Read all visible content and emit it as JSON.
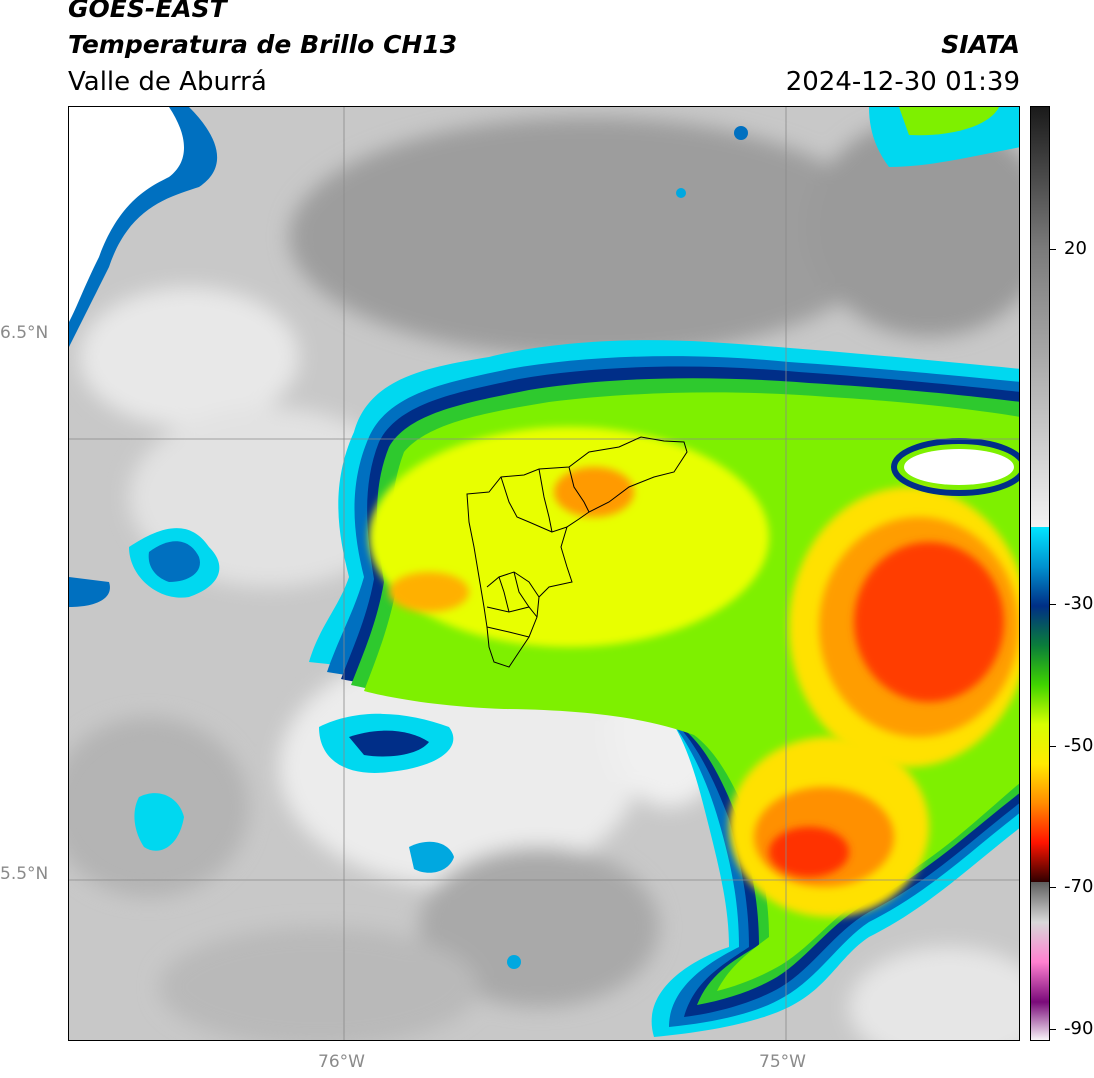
{
  "header": {
    "satellite": "GOES-EAST",
    "product": "Temperatura de Brillo CH13",
    "region": "Valle de Aburrá",
    "organization": "SIATA",
    "datetime": "2024-12-30 01:39"
  },
  "map": {
    "lat_labels": [
      "6.5°N",
      "5.5°N"
    ],
    "lon_labels": [
      "76°W",
      "75°W"
    ]
  },
  "colorbar": {
    "labels": [
      "20",
      "-30",
      "-50",
      "-70",
      "-90"
    ],
    "colors": {
      "warm": [
        "#1a1a1a",
        "#7a7a7a",
        "#b5b5b5",
        "#f2f2f2"
      ],
      "cloud": [
        "#00e5ff",
        "#0092d0",
        "#002f86",
        "#0a7d3a",
        "#3fd400",
        "#d6ff00",
        "#ffea00",
        "#ff8c00",
        "#ff1400",
        "#300000"
      ],
      "cold": [
        "#5e5e5e",
        "#d8d8d8",
        "#ff80d0",
        "#7a0a7a",
        "#ffffff"
      ]
    }
  }
}
